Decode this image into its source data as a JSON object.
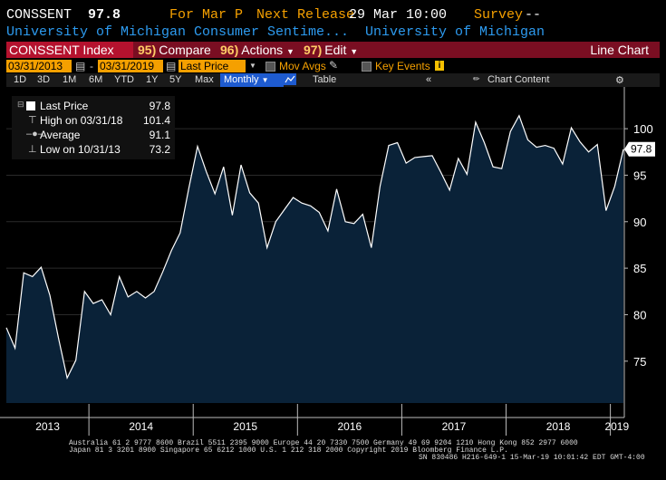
{
  "header": {
    "ticker": "CONSSENT",
    "last_value": "97.8",
    "for_period": "For Mar P",
    "next_release_label": "Next Release",
    "next_release_value": "29 Mar 10:00",
    "survey_label": "Survey",
    "survey_value": "--",
    "description": "University of Michigan Consumer Sentime...",
    "source": "University of Michigan"
  },
  "toolbar": {
    "index_label": "CONSSENT Index",
    "compare": {
      "num": "95)",
      "label": "Compare"
    },
    "actions": {
      "num": "96)",
      "label": "Actions"
    },
    "edit": {
      "num": "97)",
      "label": "Edit"
    },
    "chart_type": "Line Chart"
  },
  "controls": {
    "start_date": "03/31/2013",
    "end_date": "03/31/2019",
    "field": "Last Price",
    "mov_avgs": "Mov Avgs",
    "key_events": "Key Events"
  },
  "ranges": {
    "items": [
      "1D",
      "3D",
      "1M",
      "6M",
      "YTD",
      "1Y",
      "5Y",
      "Max"
    ],
    "frequency": "Monthly",
    "table": "Table",
    "chart_content": "Chart Content"
  },
  "legend": {
    "rows": [
      {
        "label": "Last Price",
        "value": "97.8"
      },
      {
        "label": "High on 03/31/18",
        "value": "101.4"
      },
      {
        "label": "Average",
        "value": "91.1"
      },
      {
        "label": "Low on 10/31/13",
        "value": "73.2"
      }
    ]
  },
  "chart_data": {
    "type": "area",
    "frequency": "monthly",
    "x_start": "2013-03",
    "x_end": "2019-03",
    "year_labels": [
      "2013",
      "2014",
      "2015",
      "2016",
      "2017",
      "2018",
      "2019"
    ],
    "values": [
      78.6,
      76.4,
      84.5,
      84.1,
      85.1,
      82.1,
      77.5,
      73.2,
      75.1,
      82.5,
      81.2,
      81.6,
      80.0,
      84.1,
      81.9,
      82.5,
      81.8,
      82.5,
      84.6,
      86.9,
      88.8,
      93.6,
      98.1,
      95.4,
      93.0,
      95.9,
      90.7,
      96.1,
      93.1,
      92.0,
      87.2,
      90.0,
      91.3,
      92.6,
      92.0,
      91.7,
      91.0,
      89.0,
      93.5,
      90.0,
      89.8,
      90.8,
      87.2,
      93.8,
      98.2,
      98.5,
      96.3,
      96.9,
      97.0,
      97.1,
      95.3,
      93.4,
      96.8,
      95.1,
      100.7,
      98.5,
      95.9,
      95.7,
      99.7,
      101.4,
      98.8,
      98.0,
      98.2,
      97.9,
      96.2,
      100.1,
      98.6,
      97.5,
      98.3,
      91.2,
      93.8,
      97.8
    ],
    "y_ticks": [
      75,
      80,
      85,
      90,
      95,
      100
    ],
    "ylim": [
      70.5,
      104.1
    ],
    "last_value_label": "97.8",
    "colors": {
      "fill": "#0a2238",
      "line": "#ffffff",
      "axis": "#bbbbbb"
    }
  },
  "footer": {
    "line1": "Australia 61 2 9777 8600 Brazil 5511 2395 9000 Europe 44 20 7330 7500 Germany 49 69 9204 1210 Hong Kong 852 2977 6000",
    "line2": "Japan 81 3 3201 8900       Singapore 65 6212 1000       U.S. 1 212 318 2000             Copyright 2019 Bloomberg Finance L.P.",
    "line3": "SN 830486 H216-649-1 15-Mar-19 10:01:42 EDT  GMT-4:00"
  }
}
